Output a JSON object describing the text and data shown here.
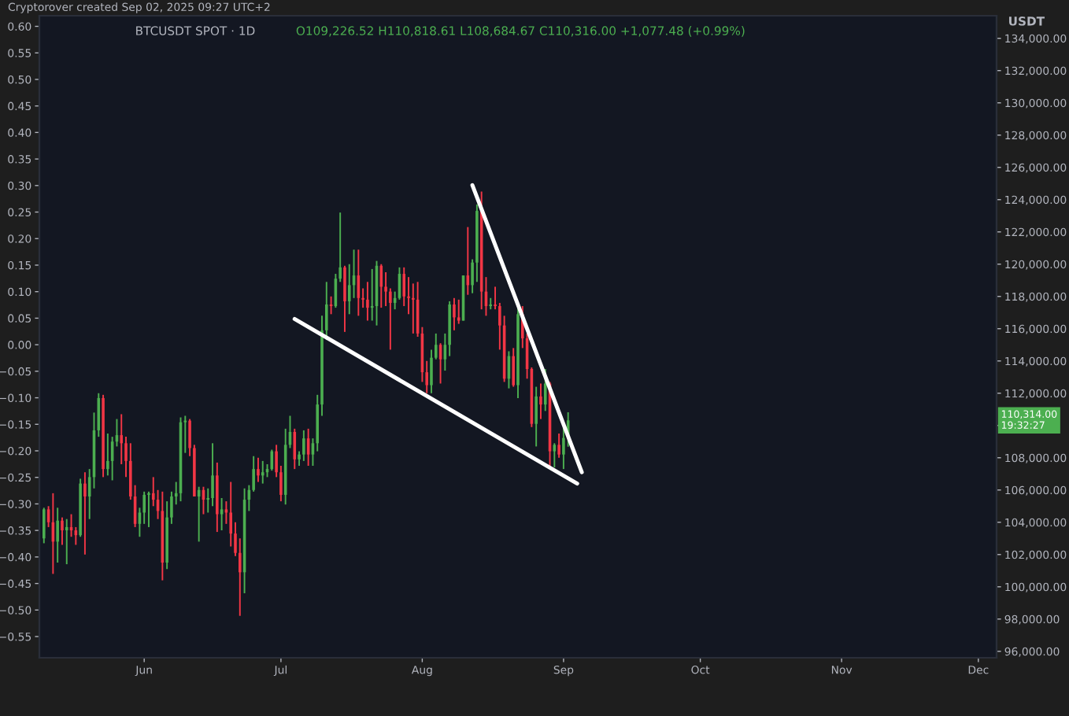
{
  "chart_data": {
    "type": "candlestick",
    "title": "BTCUSDT SPOT · 1D",
    "subtitle": "O109,226.52 H110,818.61 L108,684.67 C110,316.00 +1,077.48 (+0.99%)",
    "y2label": "USDT",
    "annotations": [
      "Cryptorover created Sep 02, 2025 09:27 UTC+2",
      "110,314.00\n19:32:27"
    ],
    "xlim": [
      "2025-05-09",
      "2025-12-05"
    ],
    "xticks": [
      {
        "value": "2025-06-01",
        "label": "Jun"
      },
      {
        "value": "2025-07-01",
        "label": "Jul"
      },
      {
        "value": "2025-08-01",
        "label": "Aug"
      },
      {
        "value": "2025-09-01",
        "label": "Sep"
      },
      {
        "value": "2025-10-01",
        "label": "Oct"
      },
      {
        "value": "2025-11-01",
        "label": "Nov"
      },
      {
        "value": "2025-12-01",
        "label": "Dec"
      }
    ],
    "ylim": [
      -0.59,
      0.62
    ],
    "yticks": [
      {
        "value": -0.55,
        "label": "−0.55"
      },
      {
        "value": -0.5,
        "label": "−0.50"
      },
      {
        "value": -0.45,
        "label": "−0.45"
      },
      {
        "value": -0.4,
        "label": "−0.40"
      },
      {
        "value": -0.35,
        "label": "−0.35"
      },
      {
        "value": -0.3,
        "label": "−0.30"
      },
      {
        "value": -0.25,
        "label": "−0.25"
      },
      {
        "value": -0.2,
        "label": "−0.20"
      },
      {
        "value": -0.15,
        "label": "−0.15"
      },
      {
        "value": -0.1,
        "label": "−0.10"
      },
      {
        "value": -0.05,
        "label": "−0.05"
      },
      {
        "value": 0,
        "label": "0.00"
      },
      {
        "value": 0.05,
        "label": "0.05"
      },
      {
        "value": 0.1,
        "label": "0.10"
      },
      {
        "value": 0.15,
        "label": "0.15"
      },
      {
        "value": 0.2,
        "label": "0.20"
      },
      {
        "value": 0.25,
        "label": "0.25"
      },
      {
        "value": 0.3,
        "label": "0.30"
      },
      {
        "value": 0.35,
        "label": "0.35"
      },
      {
        "value": 0.4,
        "label": "0.40"
      },
      {
        "value": 0.45,
        "label": "0.45"
      },
      {
        "value": 0.5,
        "label": "0.50"
      },
      {
        "value": 0.55,
        "label": "0.55"
      },
      {
        "value": 0.6,
        "label": "0.60"
      }
    ],
    "y2lim": [
      95600,
      135400
    ],
    "y2ticks": [
      {
        "value": 96000,
        "label": "96,000.00"
      },
      {
        "value": 98000,
        "label": "98,000.00"
      },
      {
        "value": 100000,
        "label": "100,000.00"
      },
      {
        "value": 102000,
        "label": "102,000.00"
      },
      {
        "value": 104000,
        "label": "104,000.00"
      },
      {
        "value": 106000,
        "label": "106,000.00"
      },
      {
        "value": 108000,
        "label": "108,000.00"
      },
      {
        "value": 110000,
        "label": null
      },
      {
        "value": 112000,
        "label": "112,000.00"
      },
      {
        "value": 114000,
        "label": "114,000.00"
      },
      {
        "value": 116000,
        "label": "116,000.00"
      },
      {
        "value": 118000,
        "label": "118,000.00"
      },
      {
        "value": 120000,
        "label": "120,000.00"
      },
      {
        "value": 122000,
        "label": "122,000.00"
      },
      {
        "value": 124000,
        "label": "124,000.00"
      },
      {
        "value": 126000,
        "label": "126,000.00"
      },
      {
        "value": 128000,
        "label": "128,000.00"
      },
      {
        "value": 130000,
        "label": "130,000.00"
      },
      {
        "value": 132000,
        "label": "132,000.00"
      },
      {
        "value": 134000,
        "label": "134,000.00"
      }
    ],
    "grid": false,
    "series": [
      {
        "axis": "y2",
        "x": [
          "2025-05-10",
          "2025-05-11",
          "2025-05-12",
          "2025-05-13",
          "2025-05-14",
          "2025-05-15",
          "2025-05-16",
          "2025-05-17",
          "2025-05-18",
          "2025-05-19",
          "2025-05-20",
          "2025-05-21",
          "2025-05-22",
          "2025-05-23",
          "2025-05-24",
          "2025-05-25",
          "2025-05-26",
          "2025-05-27",
          "2025-05-28",
          "2025-05-29",
          "2025-05-30",
          "2025-05-31",
          "2025-06-01",
          "2025-06-02",
          "2025-06-03",
          "2025-06-04",
          "2025-06-05",
          "2025-06-06",
          "2025-06-07",
          "2025-06-08",
          "2025-06-09",
          "2025-06-10",
          "2025-06-11",
          "2025-06-12",
          "2025-06-13",
          "2025-06-14",
          "2025-06-15",
          "2025-06-16",
          "2025-06-17",
          "2025-06-18",
          "2025-06-19",
          "2025-06-20",
          "2025-06-21",
          "2025-06-22",
          "2025-06-23",
          "2025-06-24",
          "2025-06-25",
          "2025-06-26",
          "2025-06-27",
          "2025-06-28",
          "2025-06-29",
          "2025-06-30",
          "2025-07-01",
          "2025-07-02",
          "2025-07-03",
          "2025-07-04",
          "2025-07-05",
          "2025-07-06",
          "2025-07-07",
          "2025-07-08",
          "2025-07-09",
          "2025-07-10",
          "2025-07-11",
          "2025-07-12",
          "2025-07-13",
          "2025-07-14",
          "2025-07-15",
          "2025-07-16",
          "2025-07-17",
          "2025-07-18",
          "2025-07-19",
          "2025-07-20",
          "2025-07-21",
          "2025-07-22",
          "2025-07-23",
          "2025-07-24",
          "2025-07-25",
          "2025-07-26",
          "2025-07-27",
          "2025-07-28",
          "2025-07-29",
          "2025-07-30",
          "2025-07-31",
          "2025-08-01",
          "2025-08-02",
          "2025-08-03",
          "2025-08-04",
          "2025-08-05",
          "2025-08-06",
          "2025-08-07",
          "2025-08-08",
          "2025-08-09",
          "2025-08-10",
          "2025-08-11",
          "2025-08-12",
          "2025-08-13",
          "2025-08-14",
          "2025-08-15",
          "2025-08-16",
          "2025-08-17",
          "2025-08-18",
          "2025-08-19",
          "2025-08-20",
          "2025-08-21",
          "2025-08-22",
          "2025-08-23",
          "2025-08-24",
          "2025-08-25",
          "2025-08-26",
          "2025-08-27",
          "2025-08-28",
          "2025-08-29",
          "2025-08-30",
          "2025-08-31",
          "2025-09-01",
          "2025-09-02"
        ],
        "ohlc": [
          [
            103000,
            104900,
            102700,
            104800
          ],
          [
            104800,
            105000,
            103700,
            104000
          ],
          [
            104000,
            105800,
            100800,
            102800
          ],
          [
            102800,
            104900,
            101500,
            104100
          ],
          [
            104100,
            104300,
            102600,
            103500
          ],
          [
            103500,
            104200,
            101400,
            103700
          ],
          [
            103700,
            104500,
            103100,
            103500
          ],
          [
            103500,
            103700,
            102600,
            103200
          ],
          [
            103200,
            106700,
            103100,
            106400
          ],
          [
            106400,
            107100,
            102000,
            105600
          ],
          [
            105600,
            107300,
            104200,
            106800
          ],
          [
            106800,
            110800,
            106100,
            109700
          ],
          [
            109700,
            112000,
            109300,
            111700
          ],
          [
            111700,
            111900,
            106800,
            107300
          ],
          [
            107300,
            109500,
            106900,
            107800
          ],
          [
            107800,
            109300,
            106600,
            109000
          ],
          [
            109000,
            110400,
            108700,
            109400
          ],
          [
            109400,
            110700,
            107600,
            108900
          ],
          [
            108900,
            109300,
            106800,
            107800
          ],
          [
            107800,
            108900,
            105400,
            105600
          ],
          [
            105600,
            106300,
            103700,
            103900
          ],
          [
            103900,
            104900,
            103100,
            104600
          ],
          [
            104600,
            105900,
            103900,
            105700
          ],
          [
            105700,
            105900,
            103700,
            105800
          ],
          [
            105800,
            106800,
            105000,
            105400
          ],
          [
            105400,
            106000,
            104200,
            104700
          ],
          [
            104700,
            105900,
            100400,
            101500
          ],
          [
            101500,
            105300,
            101100,
            104300
          ],
          [
            104300,
            105900,
            103900,
            105600
          ],
          [
            105600,
            106500,
            105100,
            105800
          ],
          [
            105800,
            110500,
            105300,
            110200
          ],
          [
            110200,
            110600,
            108300,
            110300
          ],
          [
            110300,
            110400,
            108100,
            108600
          ],
          [
            108600,
            108800,
            105600,
            105600
          ],
          [
            105600,
            106200,
            102800,
            106000
          ],
          [
            106000,
            106200,
            104500,
            105400
          ],
          [
            105400,
            106100,
            104600,
            105500
          ],
          [
            105500,
            108900,
            105000,
            106900
          ],
          [
            106900,
            107700,
            103400,
            104500
          ],
          [
            104500,
            105500,
            103500,
            104800
          ],
          [
            104800,
            105300,
            103900,
            104600
          ],
          [
            104600,
            106500,
            102500,
            103300
          ],
          [
            103300,
            104000,
            101900,
            102100
          ],
          [
            102100,
            103000,
            98200,
            100900
          ],
          [
            100900,
            106100,
            99600,
            105400
          ],
          [
            105400,
            106300,
            104700,
            106000
          ],
          [
            106000,
            108100,
            105900,
            107300
          ],
          [
            107300,
            108000,
            106500,
            106900
          ],
          [
            106900,
            107800,
            106400,
            107100
          ],
          [
            107100,
            107600,
            106800,
            107300
          ],
          [
            107300,
            108500,
            107200,
            108400
          ],
          [
            108400,
            108800,
            106800,
            107100
          ],
          [
            107100,
            107500,
            105300,
            105700
          ],
          [
            105700,
            109800,
            105100,
            108800
          ],
          [
            108800,
            110600,
            108600,
            109600
          ],
          [
            109600,
            109800,
            107300,
            107900
          ],
          [
            107900,
            108400,
            107500,
            108200
          ],
          [
            108200,
            109700,
            107800,
            109200
          ],
          [
            109200,
            109800,
            107500,
            108200
          ],
          [
            108200,
            109200,
            107500,
            108900
          ],
          [
            108900,
            111900,
            108400,
            111300
          ],
          [
            111300,
            116800,
            110600,
            115900
          ],
          [
            115900,
            118900,
            115300,
            117500
          ],
          [
            117500,
            118000,
            116900,
            117400
          ],
          [
            117400,
            119400,
            117300,
            119100
          ],
          [
            119100,
            123200,
            118900,
            119800
          ],
          [
            119800,
            119900,
            115800,
            117700
          ],
          [
            117700,
            120000,
            116900,
            118700
          ],
          [
            118700,
            120900,
            117900,
            119300
          ],
          [
            119300,
            120900,
            116800,
            117900
          ],
          [
            117900,
            118500,
            117300,
            117800
          ],
          [
            117800,
            118900,
            116500,
            117300
          ],
          [
            117300,
            119700,
            116500,
            117400
          ],
          [
            117400,
            120200,
            116200,
            119900
          ],
          [
            119900,
            120000,
            117300,
            118600
          ],
          [
            118600,
            119500,
            117400,
            118300
          ],
          [
            118300,
            118500,
            114700,
            117600
          ],
          [
            117600,
            118300,
            117200,
            117900
          ],
          [
            117900,
            119800,
            117800,
            119400
          ],
          [
            119400,
            119800,
            117400,
            118000
          ],
          [
            118000,
            119200,
            116900,
            117900
          ],
          [
            117900,
            118800,
            115700,
            117800
          ],
          [
            117800,
            118900,
            115500,
            115700
          ],
          [
            115700,
            116100,
            112700,
            113300
          ],
          [
            113300,
            114000,
            112000,
            112500
          ],
          [
            112500,
            114700,
            112000,
            114200
          ],
          [
            114200,
            115700,
            114100,
            115000
          ],
          [
            115000,
            115100,
            112600,
            114100
          ],
          [
            114100,
            115700,
            113400,
            115000
          ],
          [
            115000,
            117700,
            114300,
            117500
          ],
          [
            117500,
            117900,
            115900,
            116700
          ],
          [
            116700,
            117800,
            116300,
            116500
          ],
          [
            116500,
            119300,
            116500,
            119300
          ],
          [
            119300,
            122300,
            118100,
            118700
          ],
          [
            118700,
            120300,
            118200,
            120100
          ],
          [
            120100,
            123700,
            118900,
            123300
          ],
          [
            123300,
            124500,
            117200,
            118300
          ],
          [
            118300,
            119200,
            116800,
            117400
          ],
          [
            117400,
            117900,
            117200,
            117500
          ],
          [
            117500,
            118600,
            117200,
            117400
          ],
          [
            117400,
            117600,
            114700,
            116200
          ],
          [
            116200,
            116800,
            112700,
            112900
          ],
          [
            112900,
            114600,
            112300,
            114300
          ],
          [
            114300,
            114800,
            112400,
            112500
          ],
          [
            112500,
            117400,
            111700,
            116900
          ],
          [
            116900,
            117400,
            114800,
            115400
          ],
          [
            115400,
            115700,
            112900,
            113500
          ],
          [
            113500,
            113600,
            109900,
            110100
          ],
          [
            110100,
            112400,
            108700,
            111800
          ],
          [
            111800,
            112600,
            110400,
            111300
          ],
          [
            111300,
            113500,
            110900,
            112600
          ],
          [
            112600,
            112700,
            107500,
            108400
          ],
          [
            108400,
            108900,
            107400,
            108800
          ],
          [
            108800,
            109500,
            108000,
            108200
          ],
          [
            108200,
            109900,
            107300,
            109226.52
          ],
          [
            109226.52,
            110818.61,
            108684.67,
            110316.0
          ]
        ],
        "colors": [
          "#4caf50",
          "#f23645",
          "#f23645",
          "#4caf50",
          "#f23645",
          "#4caf50",
          "#f23645",
          "#f23645",
          "#4caf50",
          "#f23645",
          "#4caf50",
          "#4caf50",
          "#4caf50",
          "#f23645",
          "#4caf50",
          "#4caf50",
          "#4caf50",
          "#f23645",
          "#f23645",
          "#f23645",
          "#f23645",
          "#4caf50",
          "#4caf50",
          "#4caf50",
          "#f23645",
          "#f23645",
          "#f23645",
          "#4caf50",
          "#4caf50",
          "#4caf50",
          "#4caf50",
          "#4caf50",
          "#f23645",
          "#f23645",
          "#4caf50",
          "#f23645",
          "#4caf50",
          "#4caf50",
          "#f23645",
          "#4caf50",
          "#f23645",
          "#f23645",
          "#f23645",
          "#f23645",
          "#4caf50",
          "#4caf50",
          "#4caf50",
          "#f23645",
          "#4caf50",
          "#4caf50",
          "#4caf50",
          "#f23645",
          "#f23645",
          "#4caf50",
          "#4caf50",
          "#f23645",
          "#4caf50",
          "#4caf50",
          "#f23645",
          "#4caf50",
          "#4caf50",
          "#4caf50",
          "#4caf50",
          "#f23645",
          "#4caf50",
          "#4caf50",
          "#f23645",
          "#4caf50",
          "#4caf50",
          "#f23645",
          "#f23645",
          "#f23645",
          "#4caf50",
          "#4caf50",
          "#f23645",
          "#f23645",
          "#f23645",
          "#4caf50",
          "#4caf50",
          "#f23645",
          "#f23645",
          "#f23645",
          "#f23645",
          "#f23645",
          "#f23645",
          "#4caf50",
          "#4caf50",
          "#f23645",
          "#4caf50",
          "#4caf50",
          "#f23645",
          "#f23645",
          "#4caf50",
          "#f23645",
          "#4caf50",
          "#4caf50",
          "#f23645",
          "#f23645",
          "#4caf50",
          "#f23645",
          "#f23645",
          "#f23645",
          "#4caf50",
          "#f23645",
          "#4caf50",
          "#f23645",
          "#f23645",
          "#f23645",
          "#4caf50",
          "#f23645",
          "#4caf50",
          "#f23645",
          "#4caf50",
          "#f23645",
          "#4caf50",
          "#4caf50"
        ]
      },
      {
        "type": "line",
        "axis": "y2",
        "color": "#ffffff",
        "x": [
          "2025-07-04",
          "2025-09-04"
        ],
        "values": [
          116600,
          106400
        ]
      },
      {
        "type": "line",
        "axis": "y2",
        "color": "#ffffff",
        "x": [
          "2025-08-12",
          "2025-09-05"
        ],
        "values": [
          124900,
          107100
        ]
      }
    ]
  }
}
